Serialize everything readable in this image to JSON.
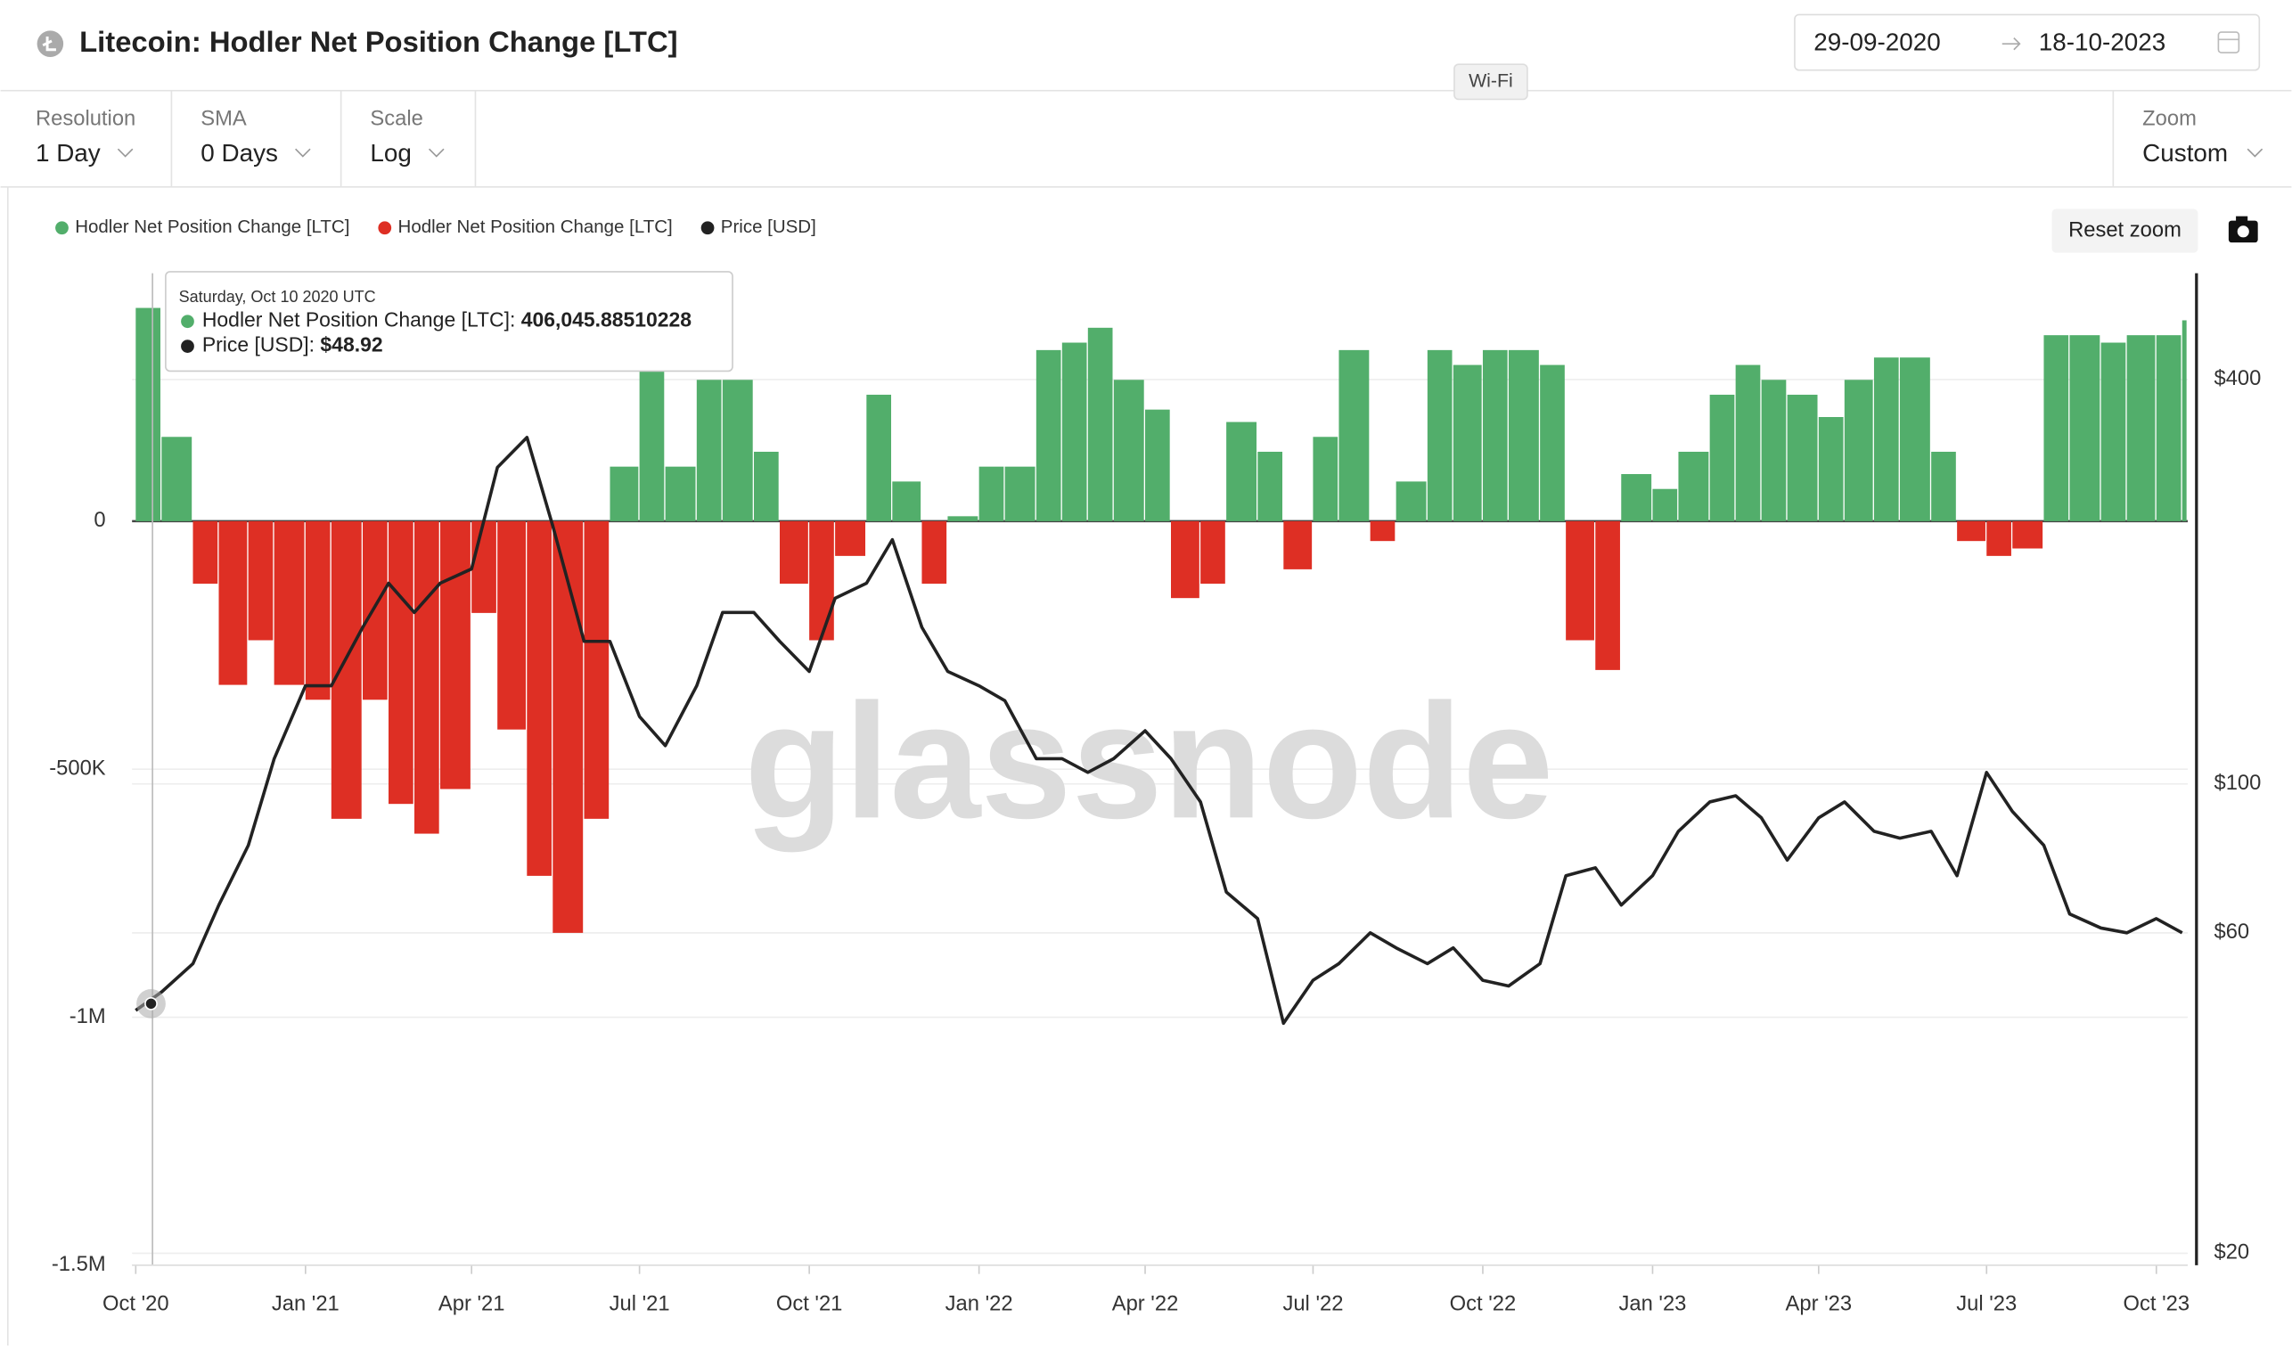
{
  "header": {
    "title": "Litecoin: Hodler Net Position Change [LTC]",
    "date_from": "29-09-2020",
    "date_to": "18-10-2023"
  },
  "system_tooltip": "Wi-Fi",
  "controls": [
    {
      "label": "Resolution",
      "value": "1 Day"
    },
    {
      "label": "SMA",
      "value": "0 Days"
    },
    {
      "label": "Scale",
      "value": "Log"
    }
  ],
  "zoom": {
    "label": "Zoom",
    "value": "Custom"
  },
  "reset_zoom": "Reset zoom",
  "watermark": "glassnode",
  "tooltip": {
    "date": "Saturday, Oct 10 2020 UTC",
    "items": [
      {
        "name": "Hodler Net Position Change [LTC]:",
        "value": "406,045.88510228"
      },
      {
        "name": "Price [USD]:",
        "value": "$48.92"
      }
    ]
  },
  "chart_data": {
    "type": "bar",
    "x": [
      "2020-10-01",
      "2020-10-15",
      "2020-11-01",
      "2020-11-15",
      "2020-12-01",
      "2020-12-15",
      "2021-01-01",
      "2021-01-15",
      "2021-02-01",
      "2021-02-15",
      "2021-03-01",
      "2021-03-15",
      "2021-04-01",
      "2021-04-15",
      "2021-05-01",
      "2021-05-15",
      "2021-06-01",
      "2021-06-15",
      "2021-07-01",
      "2021-07-15",
      "2021-08-01",
      "2021-08-15",
      "2021-09-01",
      "2021-09-15",
      "2021-10-01",
      "2021-10-15",
      "2021-11-01",
      "2021-11-15",
      "2021-12-01",
      "2021-12-15",
      "2022-01-01",
      "2022-01-15",
      "2022-02-01",
      "2022-02-15",
      "2022-03-01",
      "2022-03-15",
      "2022-04-01",
      "2022-04-15",
      "2022-05-01",
      "2022-05-15",
      "2022-06-01",
      "2022-06-15",
      "2022-07-01",
      "2022-07-15",
      "2022-08-01",
      "2022-08-15",
      "2022-09-01",
      "2022-09-15",
      "2022-10-01",
      "2022-10-15",
      "2022-11-01",
      "2022-11-15",
      "2022-12-01",
      "2022-12-15",
      "2023-01-01",
      "2023-01-15",
      "2023-02-01",
      "2023-02-15",
      "2023-03-01",
      "2023-03-15",
      "2023-04-01",
      "2023-04-15",
      "2023-05-01",
      "2023-05-15",
      "2023-06-01",
      "2023-06-15",
      "2023-07-01",
      "2023-07-15",
      "2023-08-01",
      "2023-08-15",
      "2023-09-01",
      "2023-09-15",
      "2023-10-01",
      "2023-10-15"
    ],
    "xlim": [
      "2020-09-29",
      "2023-10-18"
    ],
    "xticks": [
      {
        "value": "2020-10-01",
        "label": "Oct '20"
      },
      {
        "value": "2021-01-01",
        "label": "Jan '21"
      },
      {
        "value": "2021-04-01",
        "label": "Apr '21"
      },
      {
        "value": "2021-07-01",
        "label": "Jul '21"
      },
      {
        "value": "2021-10-01",
        "label": "Oct '21"
      },
      {
        "value": "2022-01-01",
        "label": "Jan '22"
      },
      {
        "value": "2022-04-01",
        "label": "Apr '22"
      },
      {
        "value": "2022-07-01",
        "label": "Jul '22"
      },
      {
        "value": "2022-10-01",
        "label": "Oct '22"
      },
      {
        "value": "2023-01-01",
        "label": "Jan '23"
      },
      {
        "value": "2023-04-01",
        "label": "Apr '23"
      },
      {
        "value": "2023-07-01",
        "label": "Jul '23"
      },
      {
        "value": "2023-10-01",
        "label": "Oct '23"
      }
    ],
    "ylim": [
      -1500000,
      500000
    ],
    "yticks": [
      0,
      {
        "value": -500000,
        "label": "-500K"
      },
      {
        "value": -1000000,
        "label": "-1M"
      },
      {
        "value": -1500000,
        "label": "-1.5M"
      }
    ],
    "y2lim": [
      19.2,
      576
    ],
    "y2scale": "log",
    "y2ticks": [
      {
        "value": 20,
        "label": "$20"
      },
      {
        "value": 60,
        "label": "$60"
      },
      {
        "value": 100,
        "label": "$100"
      },
      {
        "value": 400,
        "label": "$400"
      }
    ],
    "grid": true,
    "series": [
      {
        "name": "Hodler Net Position Change [LTC]",
        "color": "#52ae6b",
        "values": [
          430000,
          170000,
          null,
          null,
          null,
          null,
          null,
          null,
          null,
          null,
          null,
          null,
          null,
          null,
          null,
          null,
          null,
          110000,
          315000,
          110000,
          285000,
          285000,
          140000,
          null,
          null,
          null,
          255000,
          80000,
          null,
          10000,
          110000,
          110000,
          345000,
          360000,
          390000,
          285000,
          225000,
          null,
          null,
          200000,
          140000,
          null,
          170000,
          345000,
          null,
          80000,
          345000,
          315000,
          345000,
          345000,
          315000,
          null,
          null,
          95000,
          65000,
          140000,
          255000,
          315000,
          285000,
          255000,
          210000,
          285000,
          330000,
          330000,
          140000,
          null,
          null,
          null,
          375000,
          375000,
          360000,
          375000,
          375000,
          405000
        ]
      },
      {
        "name": "Hodler Net Position Change [LTC]",
        "color": "#de2f24",
        "values": [
          null,
          null,
          -126000,
          -330000,
          -240000,
          -330000,
          -360000,
          -600000,
          -360000,
          -570000,
          -630000,
          -540000,
          -185000,
          -420000,
          -715000,
          -830000,
          -600000,
          null,
          null,
          null,
          null,
          null,
          null,
          -126000,
          -240000,
          -70000,
          null,
          null,
          -126000,
          null,
          null,
          null,
          null,
          null,
          null,
          null,
          null,
          -155000,
          -126000,
          null,
          null,
          -97000,
          null,
          null,
          -40000,
          null,
          null,
          null,
          null,
          null,
          null,
          -240000,
          -300000,
          null,
          null,
          null,
          null,
          null,
          null,
          null,
          null,
          null,
          null,
          null,
          null,
          -40000,
          -70000,
          -55000,
          null,
          null,
          null,
          null,
          null,
          null
        ]
      },
      {
        "name": "Price [USD]",
        "color": "#222222",
        "axis": "y2",
        "type": "line",
        "values": [
          46,
          49,
          54,
          66,
          81,
          109,
          140,
          140,
          171,
          199,
          180,
          199,
          209,
          296,
          328,
          242,
          163,
          163,
          126,
          114,
          140,
          180,
          180,
          163,
          147,
          189,
          199,
          231,
          171,
          147,
          140,
          133,
          109,
          109,
          104,
          109,
          120,
          109,
          94,
          69,
          63,
          44,
          51,
          54,
          60,
          57,
          54,
          57,
          51,
          50,
          54,
          73,
          75,
          66,
          73,
          85,
          94,
          96,
          89,
          77,
          89,
          94,
          85,
          83,
          85,
          73,
          104,
          91,
          81,
          64,
          61,
          60,
          63,
          60
        ]
      }
    ]
  }
}
